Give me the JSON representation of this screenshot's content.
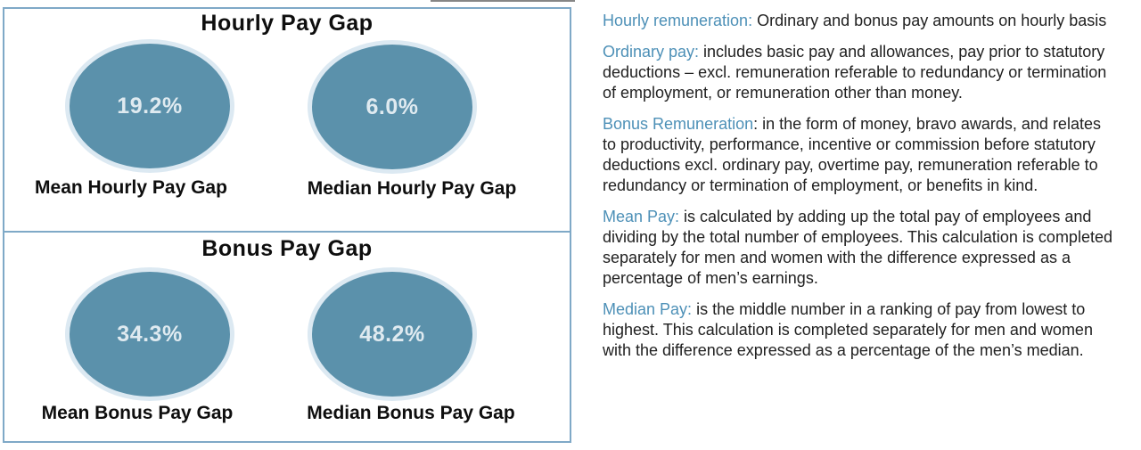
{
  "panels": [
    {
      "title": "Hourly Pay Gap",
      "gauges": [
        {
          "value": "19.2%",
          "label": "Mean Hourly Pay Gap"
        },
        {
          "value": "6.0%",
          "label": "Median Hourly Pay Gap"
        }
      ]
    },
    {
      "title": "Bonus Pay Gap",
      "gauges": [
        {
          "value": "34.3%",
          "label": "Mean Bonus Pay Gap"
        },
        {
          "value": "48.2%",
          "label": "Median Bonus Pay Gap"
        }
      ]
    }
  ],
  "definitions": [
    {
      "term": "Hourly remuneration:",
      "text": " Ordinary and bonus pay amounts on hourly basis"
    },
    {
      "term": "Ordinary pay:",
      "text": " includes basic pay and allowances, pay prior to statutory deductions – excl. remuneration referable to redundancy or termination of employment, or remuneration other than money."
    },
    {
      "term": "Bonus Remuneration",
      "text": ": in the form of money, bravo awards, and relates to productivity, performance, incentive or commission before statutory deductions excl. ordinary pay, overtime pay, remuneration referable to redundancy or termination of employment, or benefits in kind."
    },
    {
      "term": "Mean Pay:",
      "text": " is calculated by adding up the total pay of employees and dividing by the total number of employees. This calculation is completed separately for men and women with the difference expressed as a percentage of men’s earnings."
    },
    {
      "term": "Median Pay:",
      "text": " is the middle number in a ranking of pay from lowest to highest. This calculation is completed separately for men and women with the difference expressed as a percentage of the men’s median."
    }
  ],
  "colors": {
    "ellipse_fill": "#5b91ab",
    "ellipse_ring": "#dce9f2",
    "value_text": "#dfeaf0",
    "panel_border": "#7fa9c7",
    "term_accent": "#4d90b7",
    "body_text": "#212121"
  },
  "chart_data": [
    {
      "type": "table",
      "title": "Hourly Pay Gap",
      "categories": [
        "Mean Hourly Pay Gap",
        "Median Hourly Pay Gap"
      ],
      "values": [
        19.2,
        6.0
      ],
      "value_unit": "%"
    },
    {
      "type": "table",
      "title": "Bonus Pay Gap",
      "categories": [
        "Mean Bonus Pay Gap",
        "Median Bonus Pay Gap"
      ],
      "values": [
        34.3,
        48.2
      ],
      "value_unit": "%"
    }
  ]
}
